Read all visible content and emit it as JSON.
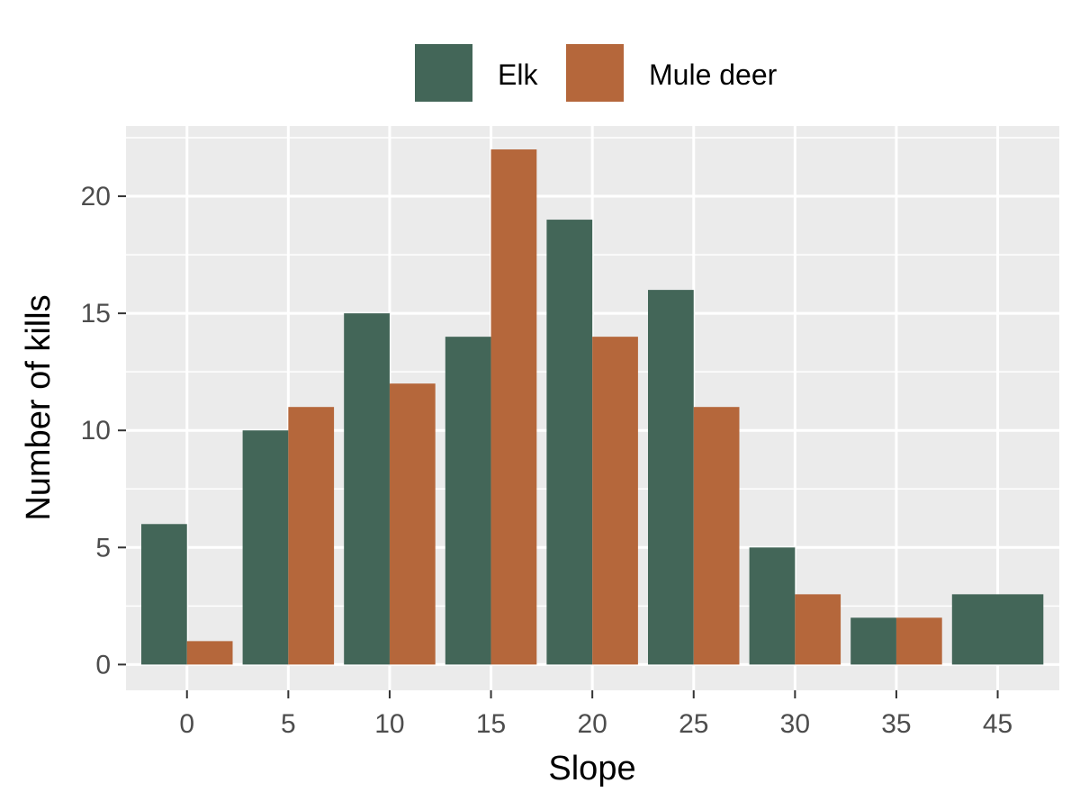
{
  "chart_data": {
    "type": "bar",
    "categories": [
      "0",
      "5",
      "10",
      "15",
      "20",
      "25",
      "30",
      "35",
      "45"
    ],
    "series": [
      {
        "name": "Elk",
        "color": "#436658",
        "values": [
          6,
          10,
          15,
          14,
          19,
          16,
          5,
          2,
          null
        ]
      },
      {
        "name": "Mule deer",
        "color": "#b5673b",
        "values": [
          1,
          11,
          12,
          22,
          14,
          11,
          3,
          2,
          null
        ]
      }
    ],
    "merged_bars": [
      {
        "category": "45",
        "value": 3,
        "color": "#436658"
      }
    ],
    "xlabel": "Slope",
    "ylabel": "Number of kills",
    "ylim": [
      -1.1,
      23
    ],
    "yticks": [
      0,
      5,
      10,
      15,
      20
    ],
    "grid": true,
    "legend_position": "top"
  }
}
